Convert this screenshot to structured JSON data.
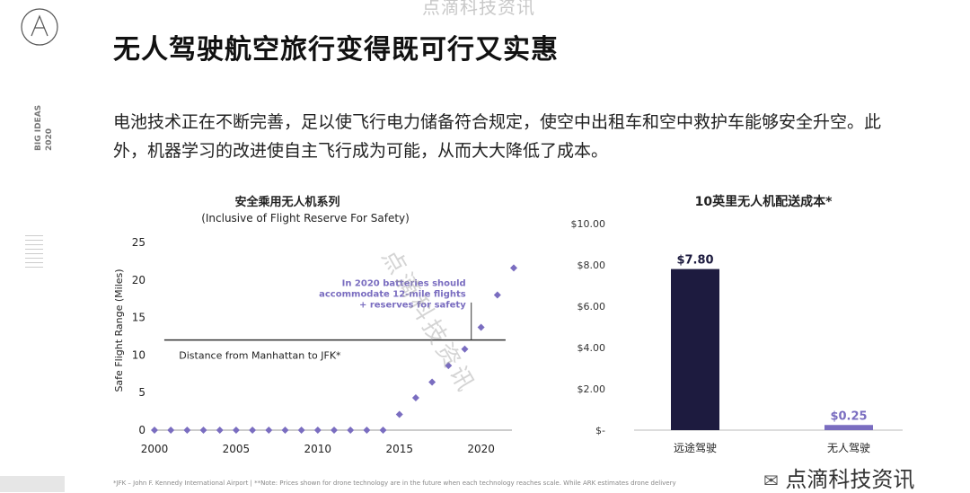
{
  "watermark_top": "点滴科技资讯",
  "header": {
    "title": "无人驾驶航空旅行变得既可行又实惠",
    "side_label_1": "BIG IDEAS",
    "side_label_2": "2020"
  },
  "body_text": "电池技术正在不断完善，足以使飞行电力储备符合规定，使空中出租车和空中救护车能够安全升空。此外，机器学习的改进使自主飞行成为可能，从而大大降低了成本。",
  "left_chart": {
    "title": "安全乘用无人机系列",
    "subtitle": "(Inclusive of Flight Reserve For Safety)"
  },
  "right_chart": {
    "title": "10英里无人机配送成本*"
  },
  "watermark_diag": "点滴科技资讯",
  "footnote": "*JFK – John F. Kennedy International Airport  |  **Note: Prices shown for drone technology are in the future when each technology reaches scale. While ARK estimates drone delivery",
  "wechat_label": "点滴科技资讯",
  "colors": {
    "accent": "#7a6dc0",
    "navy": "#1d1b3f",
    "line": "#333333"
  },
  "chart_data": [
    {
      "type": "scatter",
      "title": "安全乘用无人机系列",
      "subtitle": "(Inclusive of Flight Reserve For Safety)",
      "xlabel": "",
      "ylabel": "Safe Flight Range (Miles)",
      "xlim": [
        2000,
        2022
      ],
      "ylim": [
        0,
        25
      ],
      "xticks": [
        "2000",
        "2005",
        "2010",
        "2015",
        "2020"
      ],
      "yticks": [
        "0",
        "5",
        "10",
        "15",
        "20",
        "25"
      ],
      "series": [
        {
          "name": "Safe Flight Range",
          "x": [
            2000,
            2001,
            2002,
            2003,
            2004,
            2005,
            2006,
            2007,
            2008,
            2009,
            2010,
            2011,
            2012,
            2013,
            2014,
            2015,
            2016,
            2017,
            2018,
            2019,
            2020,
            2021,
            2022
          ],
          "y": [
            0,
            0,
            0,
            0,
            0,
            0,
            0,
            0,
            0,
            0,
            0,
            0,
            0,
            0,
            0,
            2.1,
            4.3,
            6.4,
            8.6,
            10.8,
            13.7,
            18.0,
            21.6
          ]
        }
      ],
      "reference_line": {
        "y": 12,
        "label": "Distance from Manhattan to JFK*"
      },
      "annotation": "In 2020 batteries should accommodate 12-mile flights + reserves for safety",
      "annotation_lines": [
        "In 2020 batteries should",
        "accommodate 12-mile flights",
        "+ reserves for safety"
      ]
    },
    {
      "type": "bar",
      "title": "10英里无人机配送成本*",
      "categories": [
        "远途驾驶",
        "无人驾驶"
      ],
      "values": [
        7.8,
        0.25
      ],
      "value_labels": [
        "$7.80",
        "$0.25"
      ],
      "colors": [
        "#1d1b3f",
        "#7a6dc0"
      ],
      "ylim": [
        0,
        10
      ],
      "yticks": [
        "$-",
        "$2.00",
        "$4.00",
        "$6.00",
        "$8.00",
        "$10.00"
      ]
    }
  ]
}
